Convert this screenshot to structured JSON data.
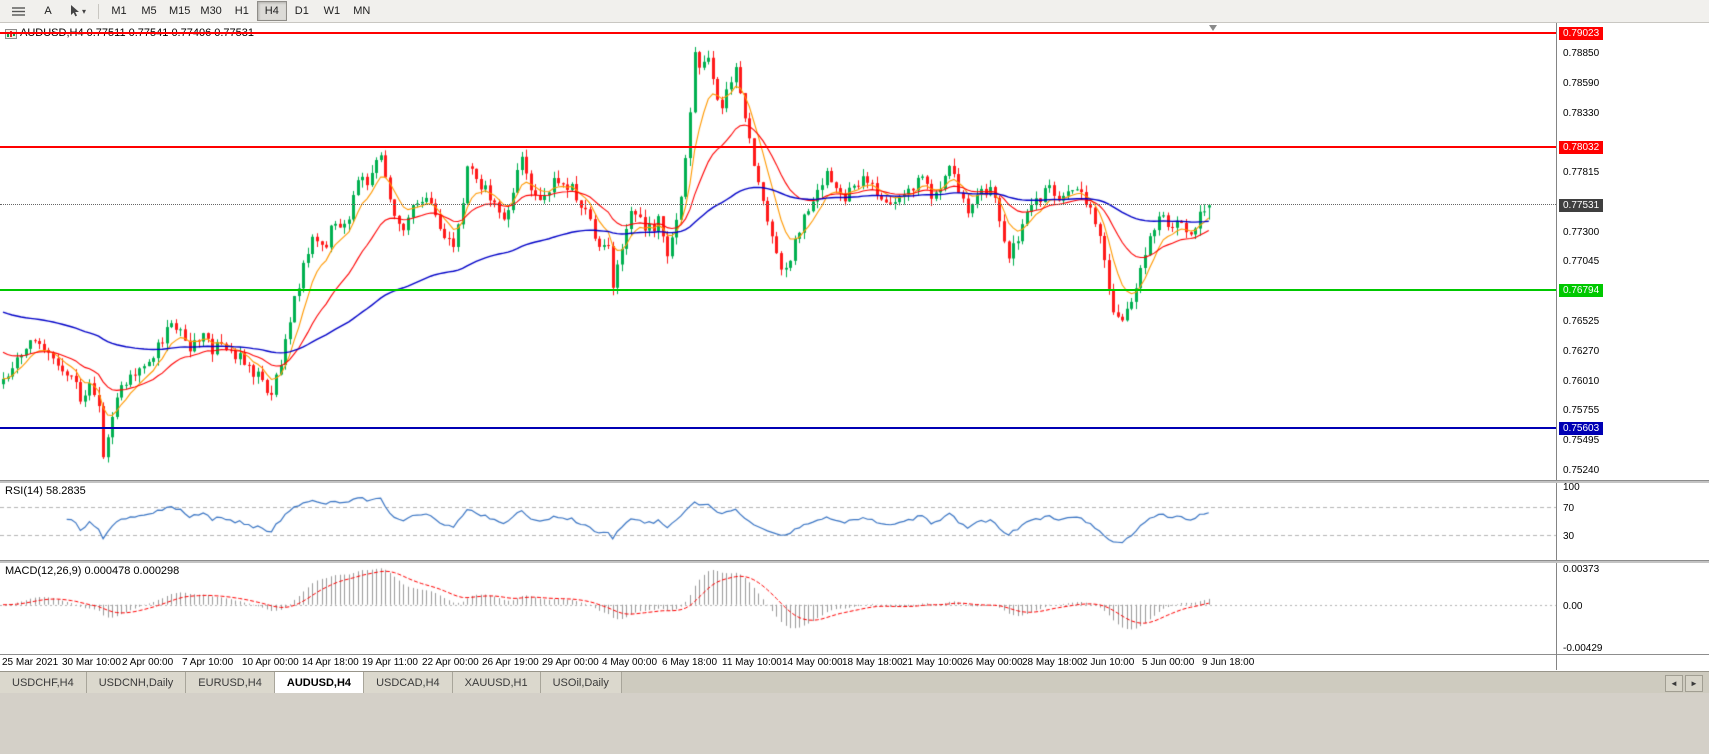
{
  "colors": {
    "up_candle": "#00b050",
    "down_candle": "#ff1a1a",
    "rsi_line": "#3a75c4",
    "macd_hist": "#9a9a9a",
    "macd_signal": "#ff0000",
    "current_price_badge": "#3f3f3f"
  },
  "toolbar": {
    "a_button_label": "A",
    "timeframes": [
      "M1",
      "M5",
      "M15",
      "M30",
      "H1",
      "H4",
      "D1",
      "W1",
      "MN"
    ],
    "active_timeframe": "H4"
  },
  "chart_data": {
    "type": "candlestick",
    "symbol": "AUDUSD",
    "timeframe": "H4",
    "header": "AUDUSD,H4 0.77511 0.77541 0.77406 0.77531",
    "ohlc": {
      "open": 0.77511,
      "high": 0.77541,
      "low": 0.77406,
      "close": 0.77531
    },
    "y_axis": {
      "min": 0.7515,
      "max": 0.7911,
      "tick_labels": [
        "0.78850",
        "0.78590",
        "0.78330",
        "0.77815",
        "0.77300",
        "0.77045",
        "0.76525",
        "0.76270",
        "0.76010",
        "0.75755",
        "0.75495",
        "0.75240"
      ]
    },
    "x_labels": [
      "25 Mar 2021",
      "30 Mar 10:00",
      "2 Apr 00:00",
      "7 Apr 10:00",
      "10 Apr 00:00",
      "14 Apr 18:00",
      "19 Apr 11:00",
      "22 Apr 00:00",
      "26 Apr 19:00",
      "29 Apr 00:00",
      "4 May 00:00",
      "6 May 18:00",
      "11 May 10:00",
      "14 May 00:00",
      "18 May 18:00",
      "21 May 10:00",
      "26 May 00:00",
      "28 May 18:00",
      "2 Jun 10:00",
      "5 Jun 00:00",
      "9 Jun 18:00"
    ],
    "horizontal_lines": [
      {
        "price": 0.79023,
        "label": "0.79023",
        "color": "#ff0000"
      },
      {
        "price": 0.78032,
        "label": "0.78032",
        "color": "#ff0000"
      },
      {
        "price": 0.76794,
        "label": "0.76794",
        "color": "#00c800"
      },
      {
        "price": 0.75603,
        "label": "0.75603",
        "color": "#0000b4"
      }
    ],
    "current_price": {
      "price": 0.77531,
      "label": "0.77531"
    },
    "moving_averages": [
      {
        "period": 7,
        "seed": null,
        "color": "#ff9900",
        "width": 1.1
      },
      {
        "period": 21,
        "seed": 0.7628,
        "color": "#ff0000",
        "width": 1.1
      },
      {
        "period": 80,
        "seed": 0.7662,
        "color": "#0000c8",
        "width": 1.4
      }
    ],
    "indicators": [
      {
        "name": "RSI",
        "label": "RSI(14) 58.2835",
        "levels": [
          100,
          70,
          30
        ],
        "level_labels": [
          "100",
          "70",
          "30"
        ]
      },
      {
        "name": "MACD",
        "label": "MACD(12,26,9) 0.000478 0.000298",
        "scale_labels": [
          "0.00373",
          "0.00",
          "-0.00429"
        ],
        "scale_max": 0.00373,
        "scale_min": -0.00429
      }
    ],
    "price_path": [
      [
        0,
        0.7598
      ],
      [
        12,
        0.7615
      ],
      [
        25,
        0.7632
      ],
      [
        35,
        0.7641
      ],
      [
        45,
        0.7628
      ],
      [
        58,
        0.7612
      ],
      [
        70,
        0.7604
      ],
      [
        80,
        0.7588
      ],
      [
        90,
        0.7596
      ],
      [
        100,
        0.7572
      ],
      [
        104,
        0.7528
      ],
      [
        110,
        0.7568
      ],
      [
        118,
        0.759
      ],
      [
        128,
        0.7604
      ],
      [
        140,
        0.7612
      ],
      [
        152,
        0.762
      ],
      [
        162,
        0.7636
      ],
      [
        172,
        0.7652
      ],
      [
        182,
        0.7638
      ],
      [
        192,
        0.763
      ],
      [
        202,
        0.7642
      ],
      [
        212,
        0.7626
      ],
      [
        222,
        0.7633
      ],
      [
        232,
        0.7628
      ],
      [
        242,
        0.7618
      ],
      [
        252,
        0.761
      ],
      [
        262,
        0.76
      ],
      [
        270,
        0.758
      ],
      [
        278,
        0.7608
      ],
      [
        286,
        0.7642
      ],
      [
        296,
        0.7676
      ],
      [
        306,
        0.7712
      ],
      [
        316,
        0.7728
      ],
      [
        324,
        0.7712
      ],
      [
        333,
        0.7738
      ],
      [
        342,
        0.7726
      ],
      [
        352,
        0.7752
      ],
      [
        360,
        0.778
      ],
      [
        368,
        0.7764
      ],
      [
        374,
        0.7788
      ],
      [
        380,
        0.7801
      ],
      [
        386,
        0.7768
      ],
      [
        394,
        0.7746
      ],
      [
        404,
        0.7732
      ],
      [
        412,
        0.7748
      ],
      [
        422,
        0.776
      ],
      [
        432,
        0.7748
      ],
      [
        442,
        0.7734
      ],
      [
        452,
        0.7714
      ],
      [
        460,
        0.7744
      ],
      [
        468,
        0.7789
      ],
      [
        476,
        0.7774
      ],
      [
        486,
        0.7766
      ],
      [
        496,
        0.7754
      ],
      [
        506,
        0.7742
      ],
      [
        514,
        0.7768
      ],
      [
        521,
        0.7795
      ],
      [
        530,
        0.7768
      ],
      [
        540,
        0.7754
      ],
      [
        550,
        0.777
      ],
      [
        560,
        0.7777
      ],
      [
        570,
        0.7768
      ],
      [
        580,
        0.7757
      ],
      [
        590,
        0.7736
      ],
      [
        600,
        0.7716
      ],
      [
        607,
        0.7731
      ],
      [
        613,
        0.7683
      ],
      [
        621,
        0.7716
      ],
      [
        631,
        0.7744
      ],
      [
        641,
        0.7738
      ],
      [
        651,
        0.7731
      ],
      [
        659,
        0.7744
      ],
      [
        667,
        0.7705
      ],
      [
        675,
        0.7736
      ],
      [
        683,
        0.7772
      ],
      [
        689,
        0.7824
      ],
      [
        694,
        0.7884
      ],
      [
        700,
        0.7868
      ],
      [
        706,
        0.7888
      ],
      [
        712,
        0.7862
      ],
      [
        720,
        0.7836
      ],
      [
        728,
        0.7854
      ],
      [
        735,
        0.7872
      ],
      [
        743,
        0.784
      ],
      [
        751,
        0.7802
      ],
      [
        760,
        0.7762
      ],
      [
        770,
        0.7728
      ],
      [
        780,
        0.7704
      ],
      [
        788,
        0.769
      ],
      [
        796,
        0.7726
      ],
      [
        806,
        0.7746
      ],
      [
        816,
        0.7758
      ],
      [
        825,
        0.7781
      ],
      [
        834,
        0.7768
      ],
      [
        844,
        0.7757
      ],
      [
        854,
        0.777
      ],
      [
        864,
        0.7775
      ],
      [
        874,
        0.7768
      ],
      [
        884,
        0.7757
      ],
      [
        894,
        0.7751
      ],
      [
        904,
        0.7762
      ],
      [
        914,
        0.7772
      ],
      [
        924,
        0.7775
      ],
      [
        934,
        0.7757
      ],
      [
        944,
        0.7772
      ],
      [
        950,
        0.7793
      ],
      [
        958,
        0.7763
      ],
      [
        968,
        0.7747
      ],
      [
        978,
        0.776
      ],
      [
        988,
        0.7768
      ],
      [
        998,
        0.7751
      ],
      [
        1008,
        0.7705
      ],
      [
        1018,
        0.7728
      ],
      [
        1028,
        0.7744
      ],
      [
        1038,
        0.7757
      ],
      [
        1048,
        0.7772
      ],
      [
        1056,
        0.7755
      ],
      [
        1066,
        0.7764
      ],
      [
        1076,
        0.7771
      ],
      [
        1086,
        0.7754
      ],
      [
        1096,
        0.7739
      ],
      [
        1106,
        0.7699
      ],
      [
        1113,
        0.7657
      ],
      [
        1121,
        0.7649
      ],
      [
        1130,
        0.7669
      ],
      [
        1140,
        0.7697
      ],
      [
        1150,
        0.7727
      ],
      [
        1160,
        0.7749
      ],
      [
        1170,
        0.7736
      ],
      [
        1180,
        0.7743
      ],
      [
        1190,
        0.7729
      ],
      [
        1200,
        0.7747
      ],
      [
        1213,
        0.77531
      ]
    ]
  },
  "tabs": {
    "items": [
      "USDCHF,H4",
      "USDCNH,Daily",
      "EURUSD,H4",
      "AUDUSD,H4",
      "USDCAD,H4",
      "XAUUSD,H1",
      "USOil,Daily"
    ],
    "active": "AUDUSD,H4"
  }
}
